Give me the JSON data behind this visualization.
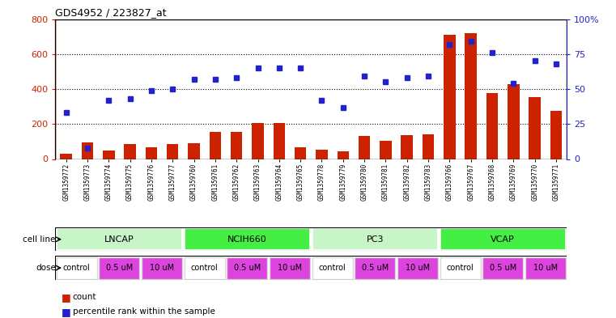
{
  "title": "GDS4952 / 223827_at",
  "samples": [
    "GSM1359772",
    "GSM1359773",
    "GSM1359774",
    "GSM1359775",
    "GSM1359776",
    "GSM1359777",
    "GSM1359760",
    "GSM1359761",
    "GSM1359762",
    "GSM1359763",
    "GSM1359764",
    "GSM1359765",
    "GSM1359778",
    "GSM1359779",
    "GSM1359780",
    "GSM1359781",
    "GSM1359782",
    "GSM1359783",
    "GSM1359766",
    "GSM1359767",
    "GSM1359768",
    "GSM1359769",
    "GSM1359770",
    "GSM1359771"
  ],
  "counts": [
    30,
    95,
    50,
    85,
    65,
    85,
    90,
    155,
    155,
    205,
    205,
    65,
    55,
    45,
    130,
    105,
    135,
    140,
    710,
    720,
    375,
    430,
    355,
    275
  ],
  "percentiles": [
    33,
    8,
    42,
    43,
    49,
    50,
    57,
    57,
    58,
    65,
    65,
    65,
    42,
    37,
    59,
    55,
    58,
    59,
    82,
    84,
    76,
    54,
    70,
    68
  ],
  "cell_lines": [
    {
      "name": "LNCAP",
      "start": 0,
      "end": 6,
      "color_light": "#c8f5c8",
      "color_dark": "#55ee55"
    },
    {
      "name": "NCIH660",
      "start": 6,
      "end": 12,
      "color_light": "#55ee55",
      "color_dark": "#55ee55"
    },
    {
      "name": "PC3",
      "start": 12,
      "end": 18,
      "color_light": "#c8f5c8",
      "color_dark": "#55ee55"
    },
    {
      "name": "VCAP",
      "start": 18,
      "end": 24,
      "color_light": "#55ee55",
      "color_dark": "#55ee55"
    }
  ],
  "dose_groups": [
    {
      "label": "control",
      "color": "#ffffff",
      "indices": [
        0,
        6,
        12,
        18
      ]
    },
    {
      "label": "0.5 uM",
      "color": "#ee44ee",
      "indices": [
        1,
        2,
        7,
        8,
        13,
        14,
        19,
        20
      ]
    },
    {
      "label": "10 uM",
      "color": "#ee44ee",
      "indices": [
        3,
        4,
        5,
        9,
        10,
        11,
        15,
        16,
        17,
        21,
        22,
        23
      ]
    }
  ],
  "dose_per_group": [
    [
      0,
      1,
      2,
      3,
      4,
      5
    ],
    [
      6,
      7,
      8,
      9,
      10,
      11
    ],
    [
      12,
      13,
      14,
      15,
      16,
      17
    ],
    [
      18,
      19,
      20,
      21,
      22,
      23
    ]
  ],
  "dose_labels_per_slot": [
    "control",
    "0.5 uM",
    "10 uM",
    "control",
    "0.5 uM",
    "10 uM",
    "control",
    "0.5 uM",
    "10 uM",
    "control",
    "0.5 uM",
    "10 uM"
  ],
  "bar_color": "#cc2200",
  "scatter_color": "#2222cc",
  "ylim_left": [
    0,
    800
  ],
  "ylim_right": [
    0,
    100
  ],
  "yticks_left": [
    0,
    200,
    400,
    600,
    800
  ],
  "ytick_labels_right": [
    "0",
    "25",
    "50",
    "75",
    "100%"
  ],
  "plot_bg": "#ffffff",
  "fig_bg": "#ffffff",
  "xticklabel_bg": "#d8d8d8",
  "cell_line_bg": "#d8d8d8",
  "dose_bg": "#d8d8d8",
  "legend_count_color": "#cc2200",
  "legend_percentile_color": "#2222cc"
}
